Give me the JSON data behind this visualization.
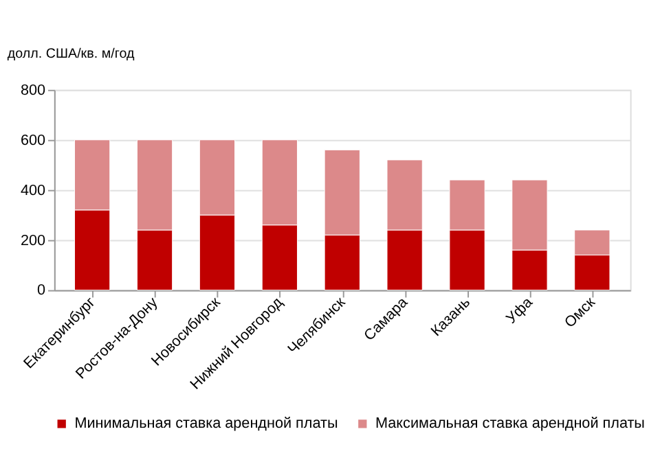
{
  "chart_data": {
    "type": "bar",
    "stacked": true,
    "ylabel": "долл. США/кв. м/год",
    "categories": [
      "Екатеринбург",
      "Ростов-на-Дону",
      "Новосибирск",
      "Нижний Новгород",
      "Челябинск",
      "Самара",
      "Казань",
      "Уфа",
      "Омск"
    ],
    "series": [
      {
        "name": "Минимальная ставка арендной платы",
        "color": "#c00000",
        "values": [
          320,
          240,
          300,
          260,
          220,
          240,
          240,
          160,
          140
        ]
      },
      {
        "name": "Максимальная ставка арендной платы",
        "color": "#dc898a",
        "values": [
          280,
          360,
          300,
          340,
          340,
          280,
          200,
          280,
          100
        ]
      }
    ],
    "ylim": [
      0,
      800
    ],
    "yticks": [
      0,
      200,
      400,
      600,
      800
    ],
    "grid": "y",
    "legend": "bottom"
  }
}
